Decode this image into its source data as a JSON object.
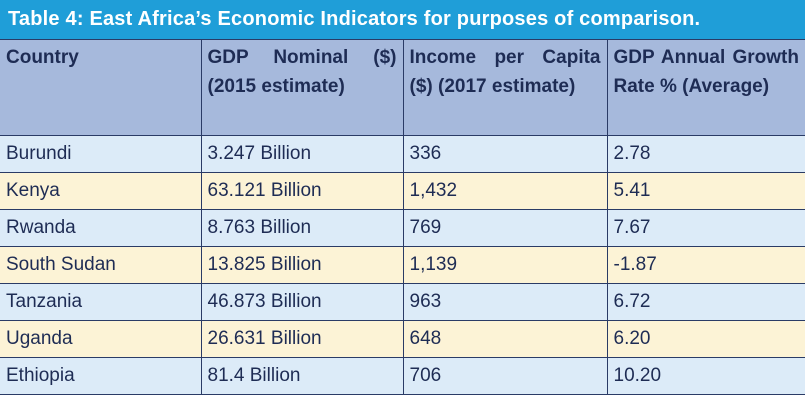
{
  "title": "Table 4: East Africa’s Economic Indicators for purposes of comparison.",
  "table": {
    "headers": [
      "Country",
      "GDP Nominal ($) (2015 estimate)",
      "Income per Capita ($) (2017 estimate)",
      "GDP Annual Growth Rate % (Average)"
    ],
    "rows": [
      [
        "Burundi",
        "3.247 Billion",
        "336",
        "2.78"
      ],
      [
        "Kenya",
        "63.121 Billion",
        "1,432",
        "5.41"
      ],
      [
        "Rwanda",
        "8.763 Billion",
        "769",
        "7.67"
      ],
      [
        "South Sudan",
        "13.825 Billion",
        "1,139",
        "-1.87"
      ],
      [
        "Tanzania",
        "46.873 Billion",
        "963",
        "6.72"
      ],
      [
        "Uganda",
        "26.631 Billion",
        "648",
        "6.20"
      ],
      [
        "Ethiopia",
        "81.4 Billion",
        "706",
        "10.20"
      ]
    ]
  },
  "colors": {
    "title_bg": "#1f9ed8",
    "header_bg": "#a6b9dc",
    "row_light": "#dcebf8",
    "row_cream": "#fcf3d6",
    "text": "#1e2c54",
    "border": "#2a3b66"
  }
}
